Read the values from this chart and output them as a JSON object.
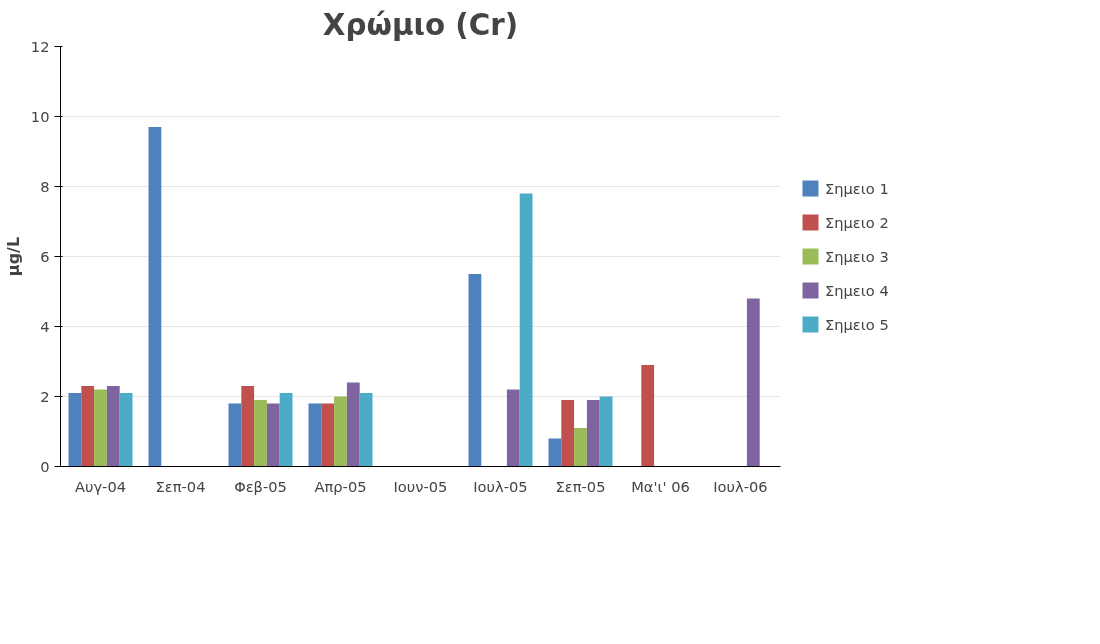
{
  "chart_data": {
    "type": "bar",
    "title": "Χρώμιο (Cr)",
    "ylabel": "μg/L",
    "categories": [
      "Αυγ-04",
      "Σεπ-04",
      "Φεβ-05",
      "Απρ-05",
      "Ιουν-05",
      "Ιουλ-05",
      "Σεπ-05",
      "Μα'ι' 06",
      "Ιουλ-06"
    ],
    "series": [
      {
        "name": "Σημειο 1",
        "color": "#4f81bd",
        "values": [
          2.1,
          9.7,
          1.8,
          1.8,
          null,
          5.5,
          0.8,
          null,
          null
        ]
      },
      {
        "name": "Σημειο 2",
        "color": "#c0504d",
        "values": [
          2.3,
          null,
          2.3,
          1.8,
          null,
          null,
          1.9,
          2.9,
          null
        ]
      },
      {
        "name": "Σημειο 3",
        "color": "#9bbb59",
        "values": [
          2.2,
          null,
          1.9,
          2.0,
          null,
          null,
          1.1,
          null,
          null
        ]
      },
      {
        "name": "Σημειο 4",
        "color": "#8064a2",
        "values": [
          2.3,
          null,
          1.8,
          2.4,
          null,
          2.2,
          1.9,
          null,
          4.8
        ]
      },
      {
        "name": "Σημειο 5",
        "color": "#4bacc6",
        "values": [
          2.1,
          null,
          2.1,
          2.1,
          null,
          7.8,
          2.0,
          null,
          null
        ]
      }
    ],
    "ylim": [
      0,
      12
    ],
    "yticks": [
      0,
      2,
      4,
      6,
      8,
      10,
      12
    ],
    "grid": "y",
    "legend": "right"
  }
}
